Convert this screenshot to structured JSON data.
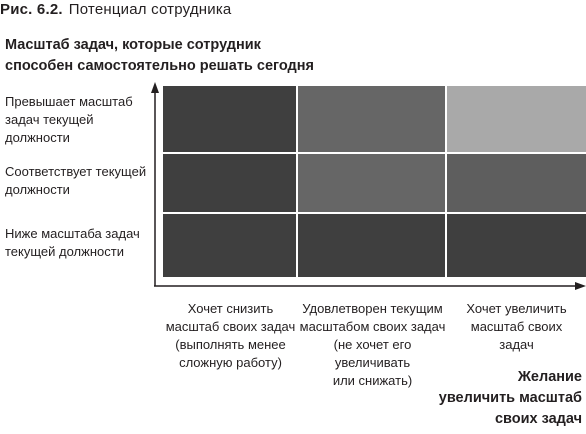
{
  "caption": {
    "number": "Рис. 6.2.",
    "title": "Потенциал сотрудника"
  },
  "y_axis": {
    "title_lines": [
      "Масштаб задач, которые сотрудник",
      "способен самостоятельно решать сегодня"
    ]
  },
  "rows": [
    {
      "lines": [
        "Превышает масштаб",
        "задач текущей",
        "должности"
      ]
    },
    {
      "lines": [
        "Соответствует текущей",
        "должности"
      ]
    },
    {
      "lines": [
        "Ниже масштаба задач",
        "текущей должности"
      ]
    }
  ],
  "columns": [
    {
      "lines": [
        "Хочет снизить",
        "масштаб своих задач",
        "(выполнять менее",
        "сложную работу)"
      ]
    },
    {
      "lines": [
        "Удовлетворен текущим",
        "масштабом своих задач",
        "(не хочет его увеличивать",
        "или снижать)"
      ]
    },
    {
      "lines": [
        "Хочет увеличить",
        "масштаб своих",
        "задач"
      ]
    }
  ],
  "x_axis": {
    "title_lines": [
      "Желание",
      "увеличить масштаб",
      "своих задач"
    ]
  },
  "cell_colors": [
    [
      "#3f3f3f",
      "#666666",
      "#a9a9a9"
    ],
    [
      "#3f3f3f",
      "#666666",
      "#5e5e5e"
    ],
    [
      "#3f3f3f",
      "#3f3f3f",
      "#3f3f3f"
    ]
  ],
  "axis_color": "#231f20"
}
